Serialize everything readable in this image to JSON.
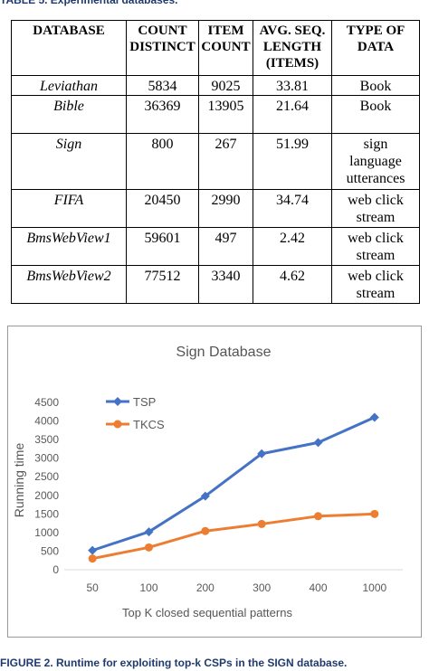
{
  "table_caption": "TABLE 5. Experimental databases.",
  "table": {
    "headers": [
      "DATABASE",
      "COUNT DISTINCT",
      "ITEM COUNT",
      "AVG. SEQ. LENGTH (ITEMS)",
      "TYPE OF DATA"
    ],
    "rows": [
      [
        "Leviathan",
        "5834",
        "9025",
        "33.81",
        "Book"
      ],
      [
        "Bible",
        "36369",
        "13905",
        "21.64",
        "Book"
      ],
      [
        "Sign",
        "800",
        "267",
        "51.99",
        "sign language utterances"
      ],
      [
        "FIFA",
        "20450",
        "2990",
        "34.74",
        "web click stream"
      ],
      [
        "BmsWebView1",
        "59601",
        "497",
        "2.42",
        "web click stream"
      ],
      [
        "BmsWebView2",
        "77512",
        "3340",
        "4.62",
        "web click stream"
      ]
    ]
  },
  "chart_data": {
    "type": "line",
    "title": "Sign Database",
    "xlabel": "Top K closed sequential patterns",
    "ylabel": "Running time",
    "categories": [
      "50",
      "100",
      "200",
      "300",
      "400",
      "1000"
    ],
    "ylim": [
      0,
      4500
    ],
    "yticks": [
      0,
      500,
      1000,
      1500,
      2000,
      2500,
      3000,
      3500,
      4000,
      4500
    ],
    "legend_position": "top-left",
    "grid": false,
    "series": [
      {
        "name": "TSP",
        "color": "#4472c4",
        "values": [
          520,
          1020,
          1980,
          3120,
          3420,
          4100
        ]
      },
      {
        "name": "TKCS",
        "color": "#ed7d31",
        "values": [
          300,
          600,
          1040,
          1230,
          1440,
          1500
        ]
      }
    ]
  },
  "figure_caption": "FIGURE 2. Runtime for exploiting top-k CSPs in the SIGN database."
}
